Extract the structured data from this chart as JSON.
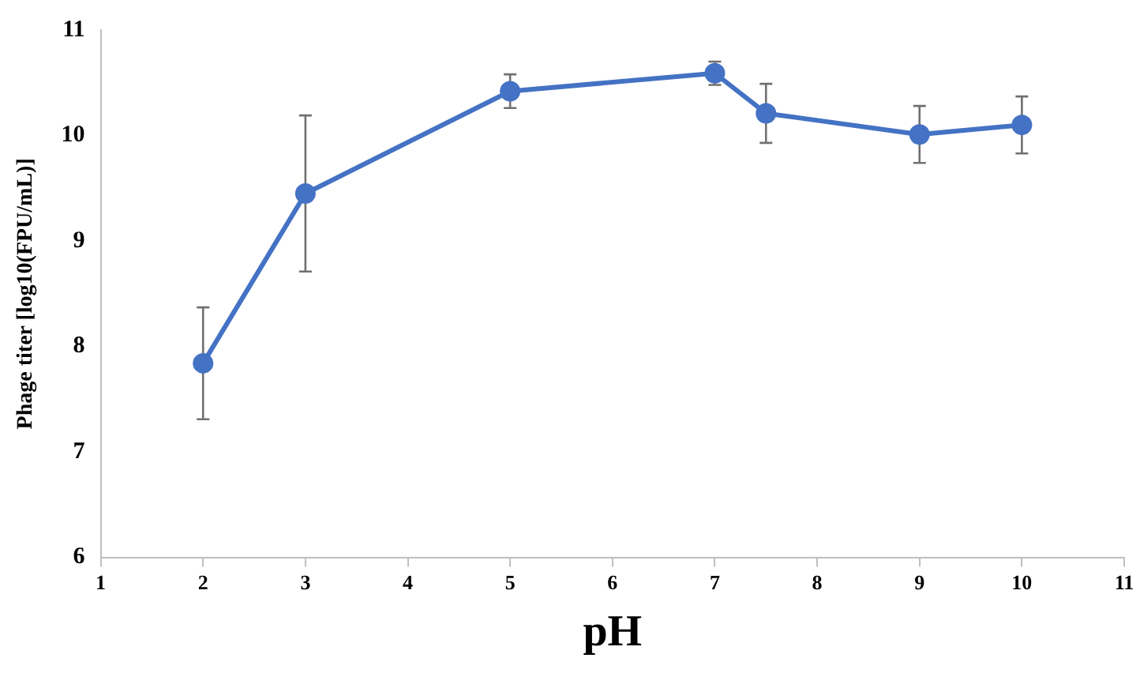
{
  "chart_data": {
    "type": "line",
    "xlabel": "pH",
    "ylabel": "Phage titer [log10(FPU/mL)]",
    "x": [
      2,
      3,
      5,
      7,
      7.5,
      9,
      10
    ],
    "series": [
      {
        "color": "#4472c4",
        "values": [
          7.84,
          9.45,
          10.42,
          10.59,
          10.21,
          10.01,
          10.1
        ],
        "errors": [
          0.53,
          0.74,
          0.16,
          0.11,
          0.28,
          0.27,
          0.27
        ]
      }
    ],
    "xlim": [
      1,
      11
    ],
    "xticks": [
      1,
      2,
      3,
      4,
      5,
      6,
      7,
      8,
      9,
      10,
      11
    ],
    "ylim": [
      6,
      11
    ],
    "yticks": [
      6,
      7,
      8,
      9,
      10,
      11
    ],
    "grid": false,
    "legend": false,
    "marker": "circle",
    "line_style": "solid"
  }
}
